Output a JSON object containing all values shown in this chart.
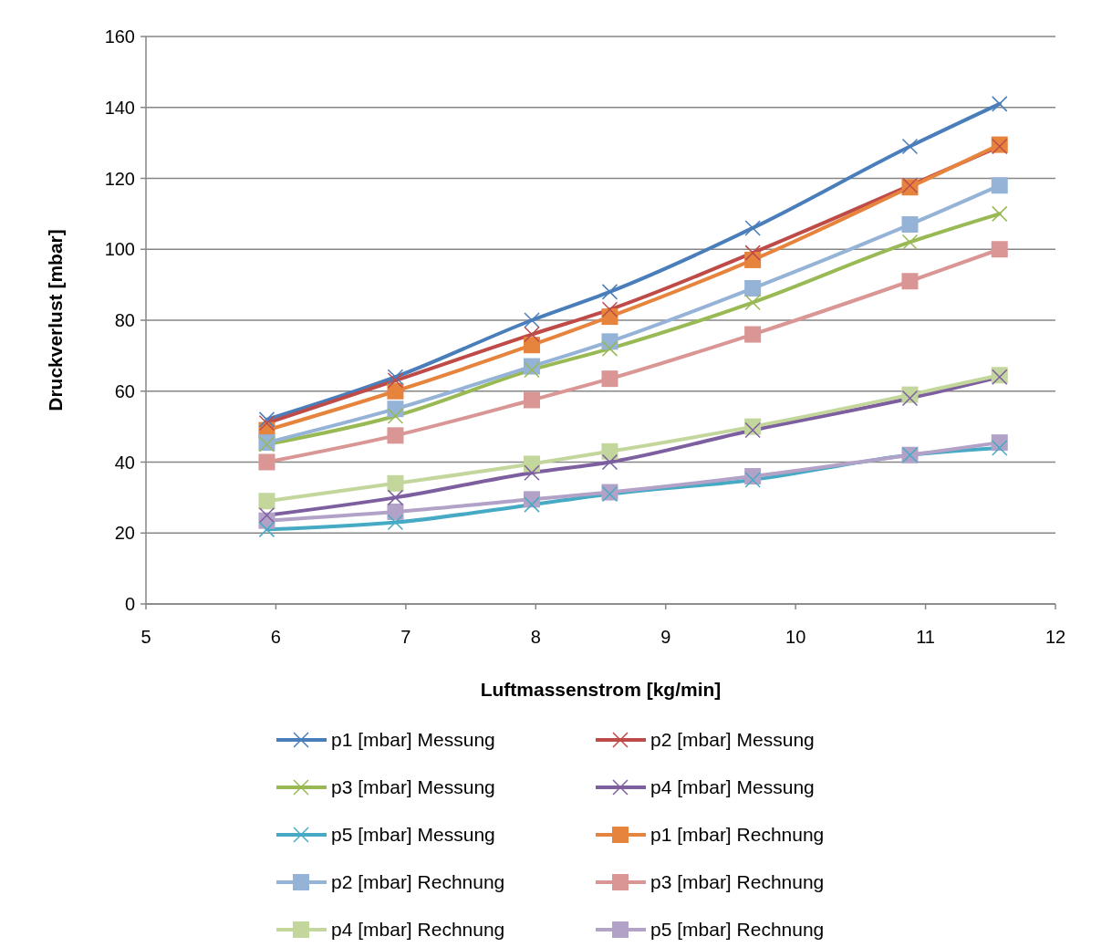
{
  "chart_data": {
    "type": "line",
    "xlabel": "Luftmassenstrom [kg/min]",
    "ylabel": "Druckverlust [mbar]",
    "x": [
      5.93,
      6.92,
      7.97,
      8.57,
      9.67,
      10.88,
      11.57
    ],
    "xlim": [
      5,
      12
    ],
    "xticks": [
      5,
      6,
      7,
      8,
      9,
      10,
      11,
      12
    ],
    "ylim": [
      0,
      160
    ],
    "yticks": [
      0,
      20,
      40,
      60,
      80,
      100,
      120,
      140,
      160
    ],
    "grid": "y",
    "legend": "bottom",
    "series": [
      {
        "name": "p1 [mbar] Messung",
        "color": "#4a7ebb",
        "marker": "cross",
        "values": [
          52,
          64,
          80,
          88,
          106,
          129,
          141
        ]
      },
      {
        "name": "p2 [mbar] Messung",
        "color": "#be4b48",
        "marker": "cross",
        "values": [
          51,
          63,
          76,
          83,
          99,
          118,
          129
        ]
      },
      {
        "name": "p3 [mbar] Messung",
        "color": "#98b954",
        "marker": "cross",
        "values": [
          45,
          53,
          66,
          72,
          85,
          102,
          110
        ]
      },
      {
        "name": "p4 [mbar] Messung",
        "color": "#7d5fa0",
        "marker": "cross",
        "values": [
          25,
          30,
          37,
          40,
          49,
          58,
          64
        ]
      },
      {
        "name": "p5 [mbar] Messung",
        "color": "#46aac5",
        "marker": "cross",
        "values": [
          21,
          23,
          28,
          31,
          35,
          42,
          44
        ]
      },
      {
        "name": "p1 [mbar] Rechnung",
        "color": "#e6843e",
        "marker": "square",
        "values": [
          49,
          60,
          73,
          81,
          97,
          117.5,
          129.5
        ]
      },
      {
        "name": "p2 [mbar] Rechnung",
        "color": "#95b3d7",
        "marker": "square",
        "values": [
          45.5,
          55,
          67,
          74,
          89,
          107,
          118
        ]
      },
      {
        "name": "p3 [mbar] Rechnung",
        "color": "#d99694",
        "marker": "square",
        "values": [
          40,
          47.5,
          57.5,
          63.5,
          76,
          91,
          100
        ]
      },
      {
        "name": "p4 [mbar] Rechnung",
        "color": "#c3d69b",
        "marker": "square",
        "values": [
          29,
          34,
          39.5,
          43,
          50,
          59,
          64.5
        ]
      },
      {
        "name": "p5 [mbar] Rechnung",
        "color": "#b3a2c7",
        "marker": "square",
        "values": [
          23.5,
          26,
          29.5,
          31.5,
          36,
          42,
          45.5
        ]
      }
    ]
  }
}
